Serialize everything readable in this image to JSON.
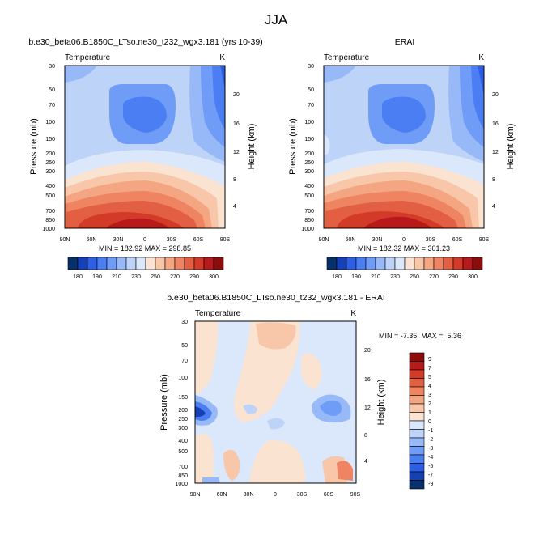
{
  "page_title": "JJA",
  "colors": {
    "scale": [
      "#08306b",
      "#1640b6",
      "#2d5ee6",
      "#4a7ef2",
      "#6f9cf6",
      "#97b9f7",
      "#bdd3f8",
      "#dbe7fa",
      "#fbe3d1",
      "#f8c6a8",
      "#f4a683",
      "#ee8462",
      "#e35f43",
      "#d43a28",
      "#b8191a",
      "#8c0c0c"
    ]
  },
  "chart_data": [
    {
      "type": "heatmap",
      "title": "b.e30_beta06.B1850C_LTso.ne30_t232_wgx3.181 (yrs 10-39)",
      "subtitle_left": "Temperature",
      "subtitle_right": "K",
      "xlabel": "",
      "ylabel": "Pressure (mb)",
      "ylabel_right": "Height (km)",
      "x_ticks": [
        "90N",
        "60N",
        "30N",
        "0",
        "30S",
        "60S",
        "90S"
      ],
      "y_ticks": [
        "30",
        "50",
        "70",
        "100",
        "150",
        "200",
        "250",
        "300",
        "400",
        "500",
        "700",
        "850",
        "1000"
      ],
      "y_right_ticks": [
        "20",
        "16",
        "12",
        "8",
        "4"
      ],
      "stats": "MIN = 182.92  MAX = 298.85",
      "colorbar_labels": [
        "180",
        "190",
        "210",
        "230",
        "250",
        "270",
        "290",
        "300"
      ]
    },
    {
      "type": "heatmap",
      "title": "ERAI",
      "subtitle_left": "Temperature",
      "subtitle_right": "K",
      "xlabel": "",
      "ylabel": "Pressure (mb)",
      "ylabel_right": "Height (km)",
      "x_ticks": [
        "90N",
        "60N",
        "30N",
        "0",
        "30S",
        "60S",
        "90S"
      ],
      "y_ticks": [
        "30",
        "50",
        "70",
        "100",
        "150",
        "200",
        "250",
        "300",
        "400",
        "500",
        "700",
        "850",
        "1000"
      ],
      "y_right_ticks": [
        "20",
        "16",
        "12",
        "8",
        "4"
      ],
      "stats": "MIN = 182.32  MAX = 301.23",
      "colorbar_labels": [
        "180",
        "190",
        "210",
        "230",
        "250",
        "270",
        "290",
        "300"
      ]
    },
    {
      "type": "heatmap",
      "title": "b.e30_beta06.B1850C_LTso.ne30_t232_wgx3.181 - ERAI",
      "subtitle_left": "Temperature",
      "subtitle_right": "K",
      "xlabel": "",
      "ylabel": "Pressure (mb)",
      "ylabel_right": "Height (km)",
      "x_ticks": [
        "90N",
        "60N",
        "30N",
        "0",
        "30S",
        "60S",
        "90S"
      ],
      "y_ticks": [
        "30",
        "50",
        "70",
        "100",
        "150",
        "200",
        "250",
        "300",
        "400",
        "500",
        "700",
        "850",
        "1000"
      ],
      "y_right_ticks": [
        "20",
        "16",
        "12",
        "8",
        "4"
      ],
      "stats": "MIN = -7.35  MAX =  5.36",
      "colorbar_labels": [
        "9",
        "7",
        "5",
        "4",
        "3",
        "2",
        "1",
        "0",
        "-1",
        "-2",
        "-3",
        "-4",
        "-5",
        "-7",
        "-9"
      ]
    }
  ]
}
